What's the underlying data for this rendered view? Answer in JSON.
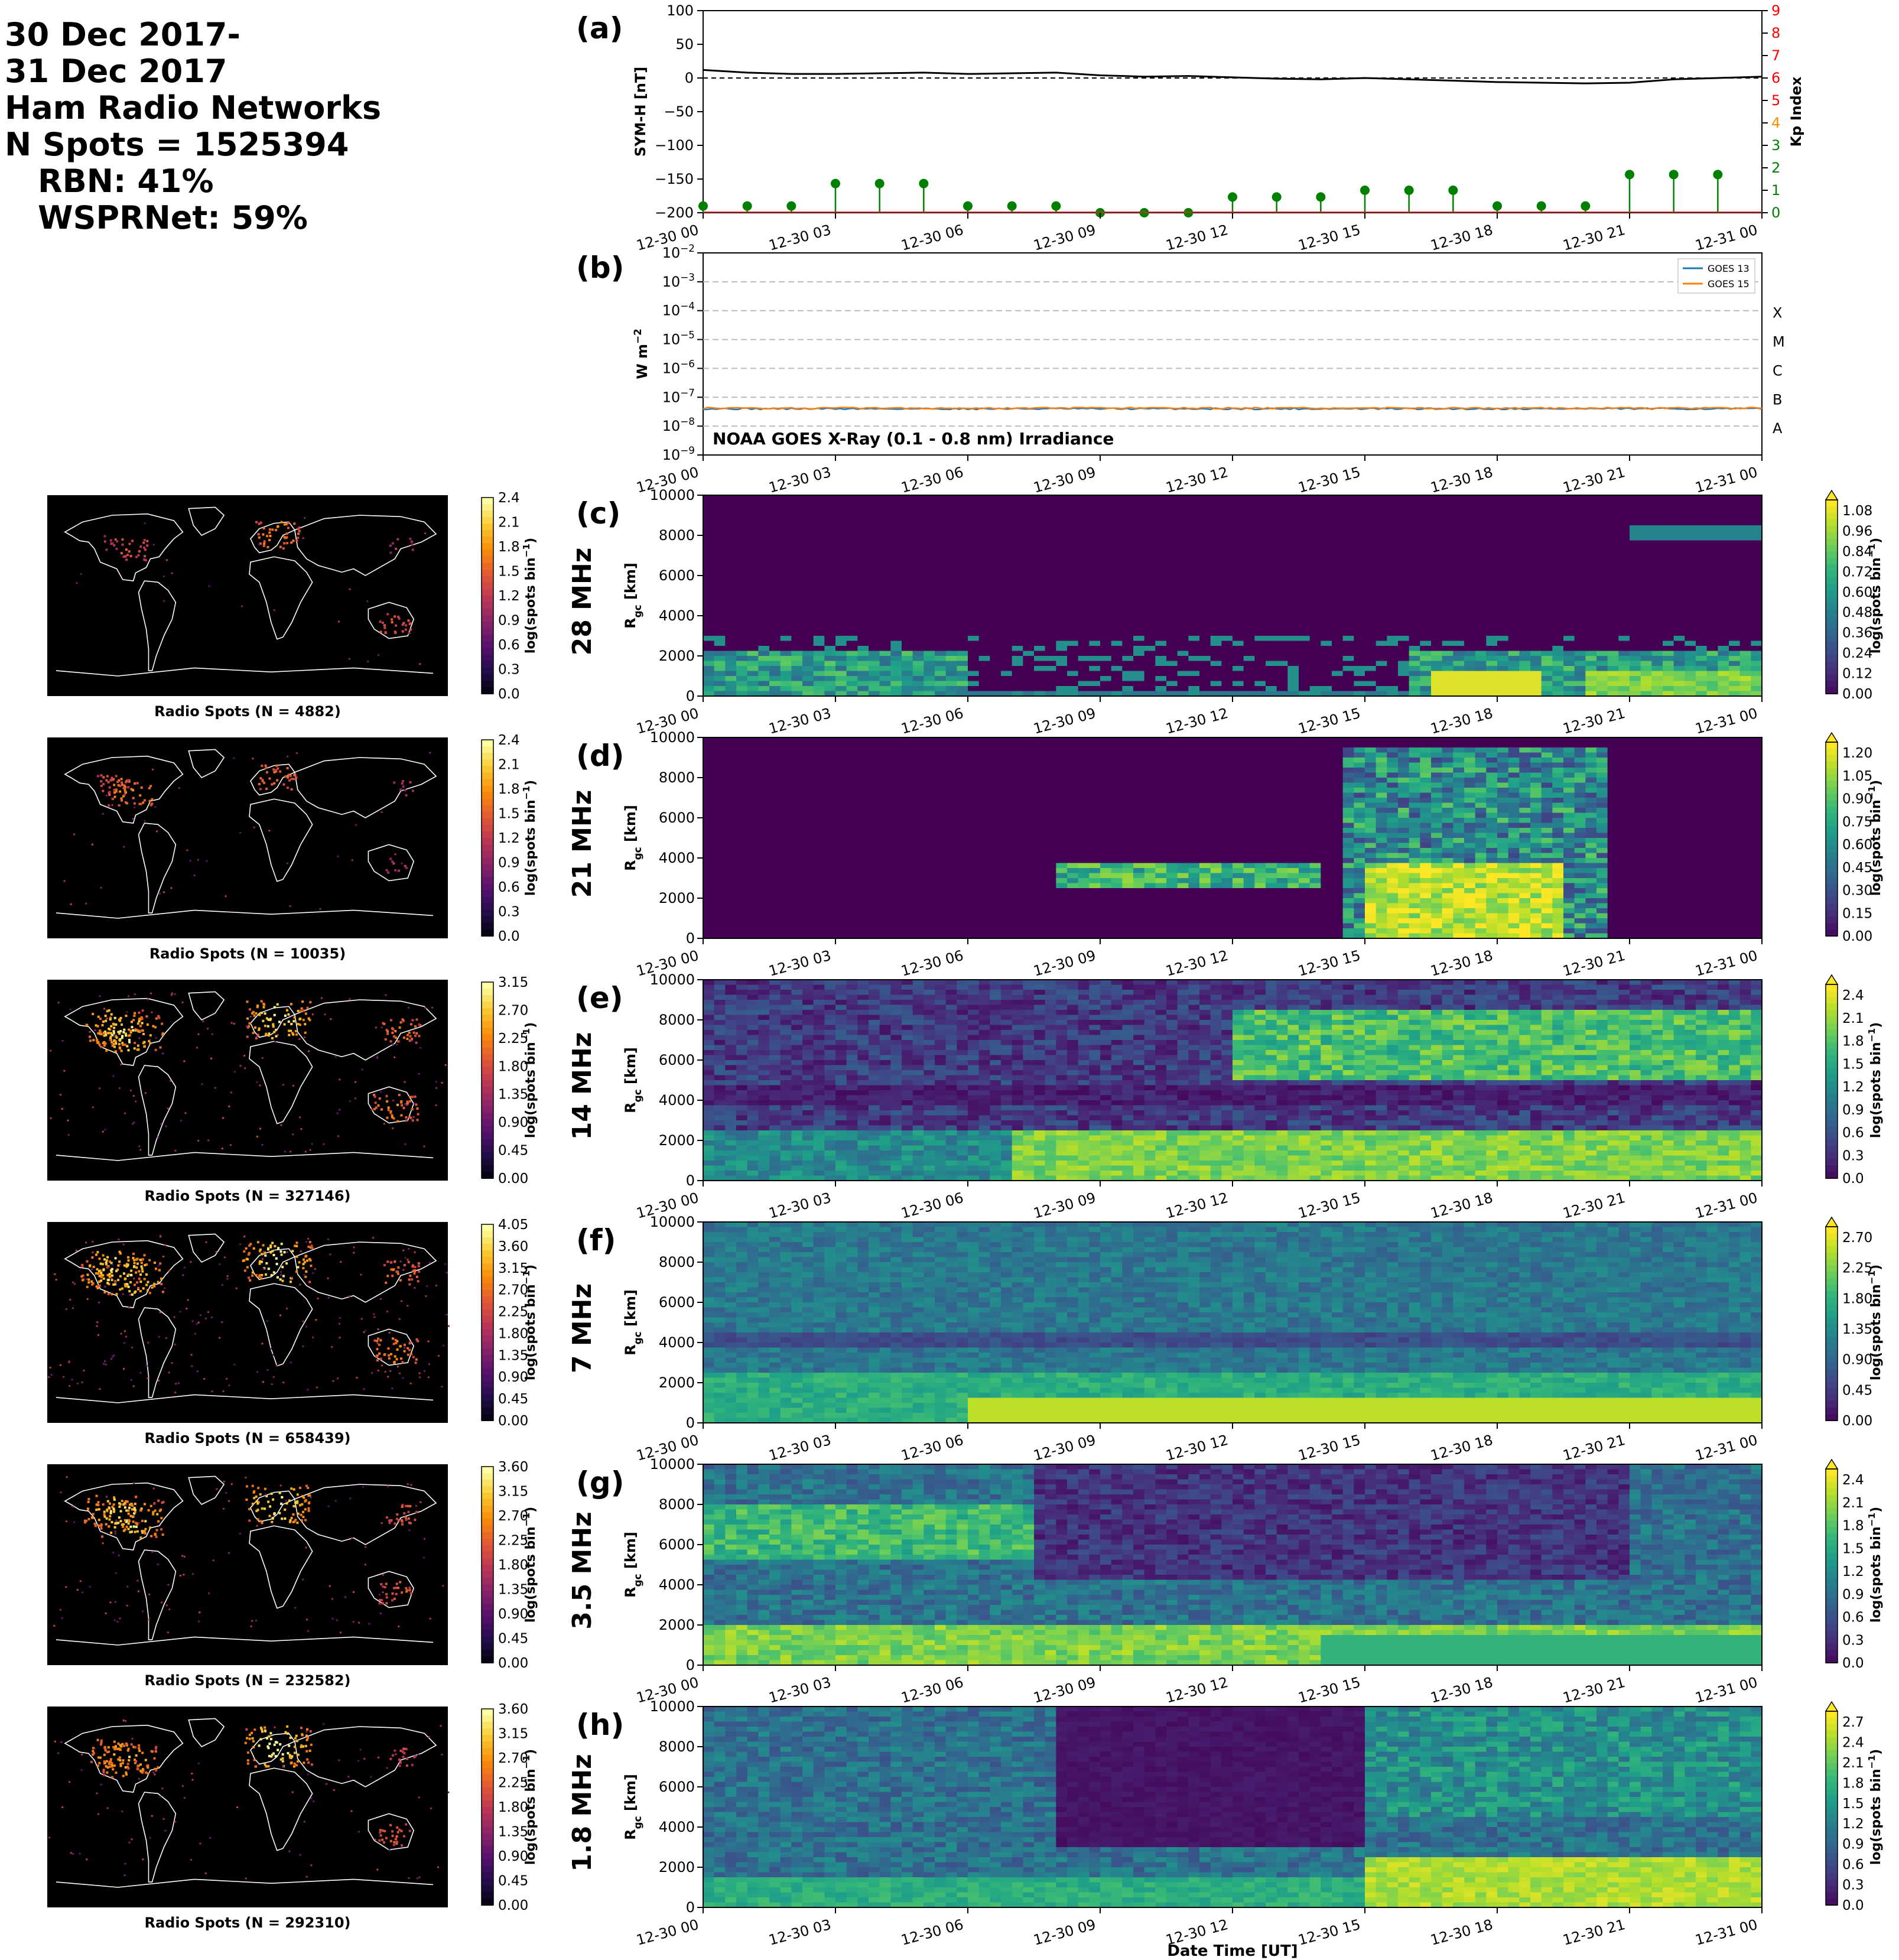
{
  "header": {
    "line1": "30 Dec 2017-",
    "line2": "31 Dec 2017",
    "line3": "Ham Radio Networks",
    "line4": "N Spots = 1525394",
    "line5": "RBN: 41%",
    "line6": "WSPRNet: 59%"
  },
  "colors": {
    "symh": "#000000",
    "kp_stem": "#008000",
    "goes13": "#1f77b4",
    "goes15": "#ff7f0e",
    "map_bg": "#000000",
    "map_coast": "#ffffff",
    "viridis_low": "#440154",
    "viridis_high": "#fde725"
  },
  "time_ticks": [
    "12-30 00",
    "12-30 03",
    "12-30 06",
    "12-30 09",
    "12-30 12",
    "12-30 15",
    "12-30 18",
    "12-30 21",
    "12-31 00"
  ],
  "xlabel": "Date Time [UT]",
  "chart_data": [
    {
      "panel": "(a)",
      "type": "line",
      "ylabel": "SYM-H [nT]",
      "ylim": [
        -200,
        100
      ],
      "yticks": [
        "100",
        "50",
        "0",
        "−50",
        "−100",
        "−150",
        "−200"
      ],
      "y2label": "Kp Index",
      "y2lim": [
        0,
        9
      ],
      "y2ticks": [
        "0",
        "1",
        "2",
        "3",
        "4",
        "5",
        "6",
        "7",
        "8",
        "9"
      ],
      "y2tick_colors": [
        "#008000",
        "#008000",
        "#008000",
        "#008000",
        "#ff8c00",
        "#ff0000",
        "#ff0000",
        "#ff0000",
        "#ff0000",
        "#ff0000"
      ],
      "symh_hours": [
        0,
        1,
        2,
        3,
        4,
        5,
        6,
        7,
        8,
        9,
        10,
        11,
        12,
        13,
        14,
        15,
        16,
        17,
        18,
        19,
        20,
        21,
        22,
        23,
        24
      ],
      "symh_values": [
        12,
        8,
        6,
        6,
        7,
        8,
        6,
        7,
        8,
        4,
        2,
        3,
        1,
        -1,
        -2,
        0,
        -2,
        -4,
        -6,
        -7,
        -8,
        -7,
        -2,
        0,
        2
      ],
      "kp_hours": [
        0,
        1,
        2,
        3,
        4,
        5,
        6,
        7,
        8,
        9,
        10,
        11,
        12,
        13,
        14,
        15,
        16,
        17,
        18,
        19,
        20,
        21,
        22,
        23
      ],
      "kp_values": [
        0.3,
        0.3,
        0.3,
        1.3,
        1.3,
        1.3,
        0.3,
        0.3,
        0.3,
        0.0,
        0.0,
        0.0,
        0.7,
        0.7,
        0.7,
        1.0,
        1.0,
        1.0,
        0.3,
        0.3,
        0.3,
        1.7,
        1.7,
        1.7
      ]
    },
    {
      "panel": "(b)",
      "type": "line",
      "title": "NOAA GOES X-Ray (0.1 - 0.8 nm) Irradiance",
      "ylabel": "W m",
      "ylabel_sup": "−2",
      "log_scale": true,
      "ylim": [
        1e-09,
        0.01
      ],
      "yticks": [
        "10",
        "10",
        "10",
        "10",
        "10",
        "10",
        "10",
        "10"
      ],
      "ytick_exps": [
        "−2",
        "−3",
        "−4",
        "−5",
        "−6",
        "−7",
        "−8",
        "−9"
      ],
      "flare_classes": [
        "X",
        "M",
        "C",
        "B",
        "A"
      ],
      "legend": "top-right",
      "series": [
        {
          "name": "GOES 13",
          "constant": 4e-08
        },
        {
          "name": "GOES 15",
          "constant": 4.2e-08
        }
      ]
    }
  ],
  "bands": [
    {
      "panel": "(c)",
      "freq": "28 MHz",
      "map_label": "Radio Spots (N = 4882)",
      "map_ticks": [
        "2.4",
        "2.1",
        "1.8",
        "1.5",
        "1.2",
        "0.9",
        "0.6",
        "0.3",
        "0.0"
      ],
      "cb_ticks": [
        "1.08",
        "0.96",
        "0.84",
        "0.72",
        "0.60",
        "0.48",
        "0.36",
        "0.24",
        "0.12",
        "0.00"
      ]
    },
    {
      "panel": "(d)",
      "freq": "21 MHz",
      "map_label": "Radio Spots (N = 10035)",
      "map_ticks": [
        "2.4",
        "2.1",
        "1.8",
        "1.5",
        "1.2",
        "0.9",
        "0.6",
        "0.3",
        "0.0"
      ],
      "cb_ticks": [
        "1.20",
        "1.05",
        "0.90",
        "0.75",
        "0.60",
        "0.45",
        "0.30",
        "0.15",
        "0.00"
      ]
    },
    {
      "panel": "(e)",
      "freq": "14 MHz",
      "map_label": "Radio Spots (N = 327146)",
      "map_ticks": [
        "3.15",
        "2.70",
        "2.25",
        "1.80",
        "1.35",
        "0.90",
        "0.45",
        "0.00"
      ],
      "cb_ticks": [
        "2.4",
        "2.1",
        "1.8",
        "1.5",
        "1.2",
        "0.9",
        "0.6",
        "0.3",
        "0.0"
      ]
    },
    {
      "panel": "(f)",
      "freq": "7 MHz",
      "map_label": "Radio Spots (N = 658439)",
      "map_ticks": [
        "4.05",
        "3.60",
        "3.15",
        "2.70",
        "2.25",
        "1.80",
        "1.35",
        "0.90",
        "0.45",
        "0.00"
      ],
      "cb_ticks": [
        "2.70",
        "2.25",
        "1.80",
        "1.35",
        "0.90",
        "0.45",
        "0.00"
      ]
    },
    {
      "panel": "(g)",
      "freq": "3.5 MHz",
      "map_label": "Radio Spots (N = 232582)",
      "map_ticks": [
        "3.60",
        "3.15",
        "2.70",
        "2.25",
        "1.80",
        "1.35",
        "0.90",
        "0.45",
        "0.00"
      ],
      "cb_ticks": [
        "2.4",
        "2.1",
        "1.8",
        "1.5",
        "1.2",
        "0.9",
        "0.6",
        "0.3",
        "0.0"
      ]
    },
    {
      "panel": "(h)",
      "freq": "1.8 MHz",
      "map_label": "Radio Spots (N = 292310)",
      "map_ticks": [
        "3.60",
        "3.15",
        "2.70",
        "2.25",
        "1.80",
        "1.35",
        "0.90",
        "0.45",
        "0.00"
      ],
      "cb_ticks": [
        "2.7",
        "2.4",
        "2.1",
        "1.8",
        "1.5",
        "1.2",
        "0.9",
        "0.6",
        "0.3",
        "0.0"
      ]
    }
  ],
  "rgc_ylabel": "R",
  "rgc_ylabel_sub": "gc",
  "rgc_ylabel_unit": " [km]",
  "rgc_yticks": [
    "10000",
    "8000",
    "6000",
    "4000",
    "2000",
    "0"
  ],
  "cb_label": "log(spots bin",
  "cb_label_sup": "−1",
  "cb_label_end": ")"
}
